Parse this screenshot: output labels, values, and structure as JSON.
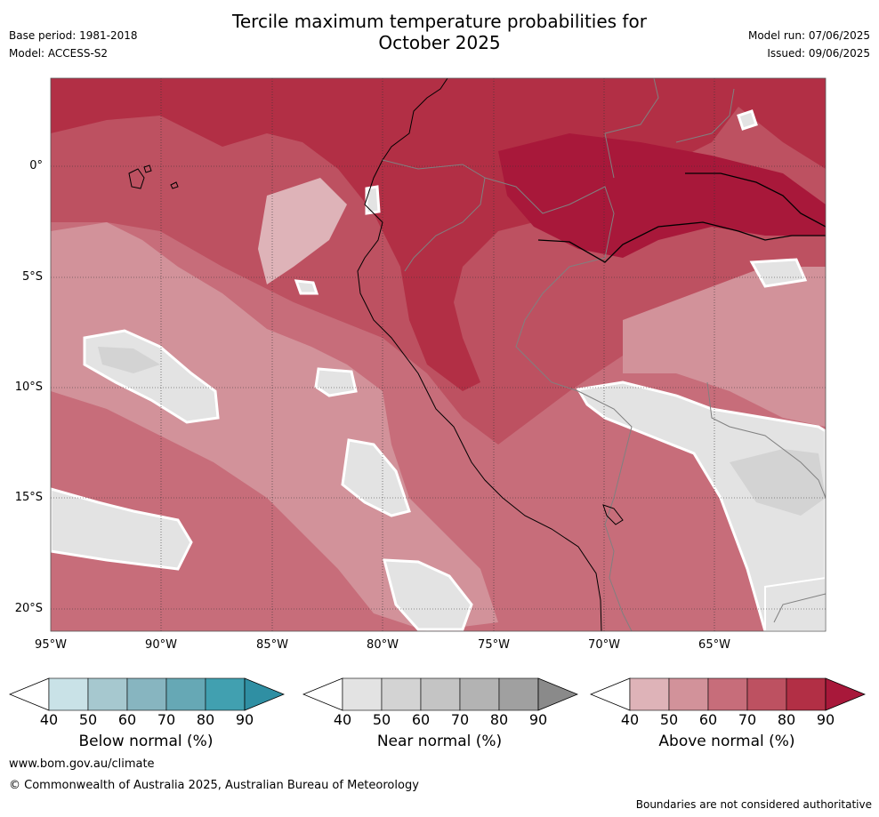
{
  "title": {
    "line1": "Tercile maximum temperature probabilities for",
    "line2": "October 2025"
  },
  "meta_left": {
    "base_period": "Base period: 1981-2018",
    "model": "Model: ACCESS-S2"
  },
  "meta_right": {
    "model_run": "Model run: 07/06/2025",
    "issued": "Issued: 09/06/2025"
  },
  "map": {
    "lat_labels": [
      "0°",
      "5°S",
      "10°S",
      "15°S",
      "20°S"
    ],
    "lon_labels": [
      "95°W",
      "90°W",
      "85°W",
      "80°W",
      "75°W",
      "70°W",
      "65°W"
    ]
  },
  "colorbars": [
    {
      "label": "Below normal (%)",
      "ticks": [
        "40",
        "50",
        "60",
        "70",
        "80",
        "90"
      ],
      "colors": [
        "#c9e2e7",
        "#a6c8cf",
        "#87b5c0",
        "#66a8b5",
        "#41a0b0",
        "#2f8fa3"
      ]
    },
    {
      "label": "Near normal (%)",
      "ticks": [
        "40",
        "50",
        "60",
        "70",
        "80",
        "90"
      ],
      "colors": [
        "#e3e3e3",
        "#d3d3d3",
        "#c4c4c4",
        "#b3b3b3",
        "#a0a0a0",
        "#8a8a8a"
      ]
    },
    {
      "label": "Above normal (%)",
      "ticks": [
        "40",
        "50",
        "60",
        "70",
        "80",
        "90"
      ],
      "colors": [
        "#deb3b8",
        "#d2929a",
        "#c76d7a",
        "#bd5161",
        "#b22f45",
        "#a8183a"
      ]
    }
  ],
  "footer": {
    "url": "www.bom.gov.au/climate",
    "copyright": "© Commonwealth of Australia 2025, Australian Bureau of Meteorology",
    "disclaimer": "Boundaries are not considered authoritative"
  }
}
